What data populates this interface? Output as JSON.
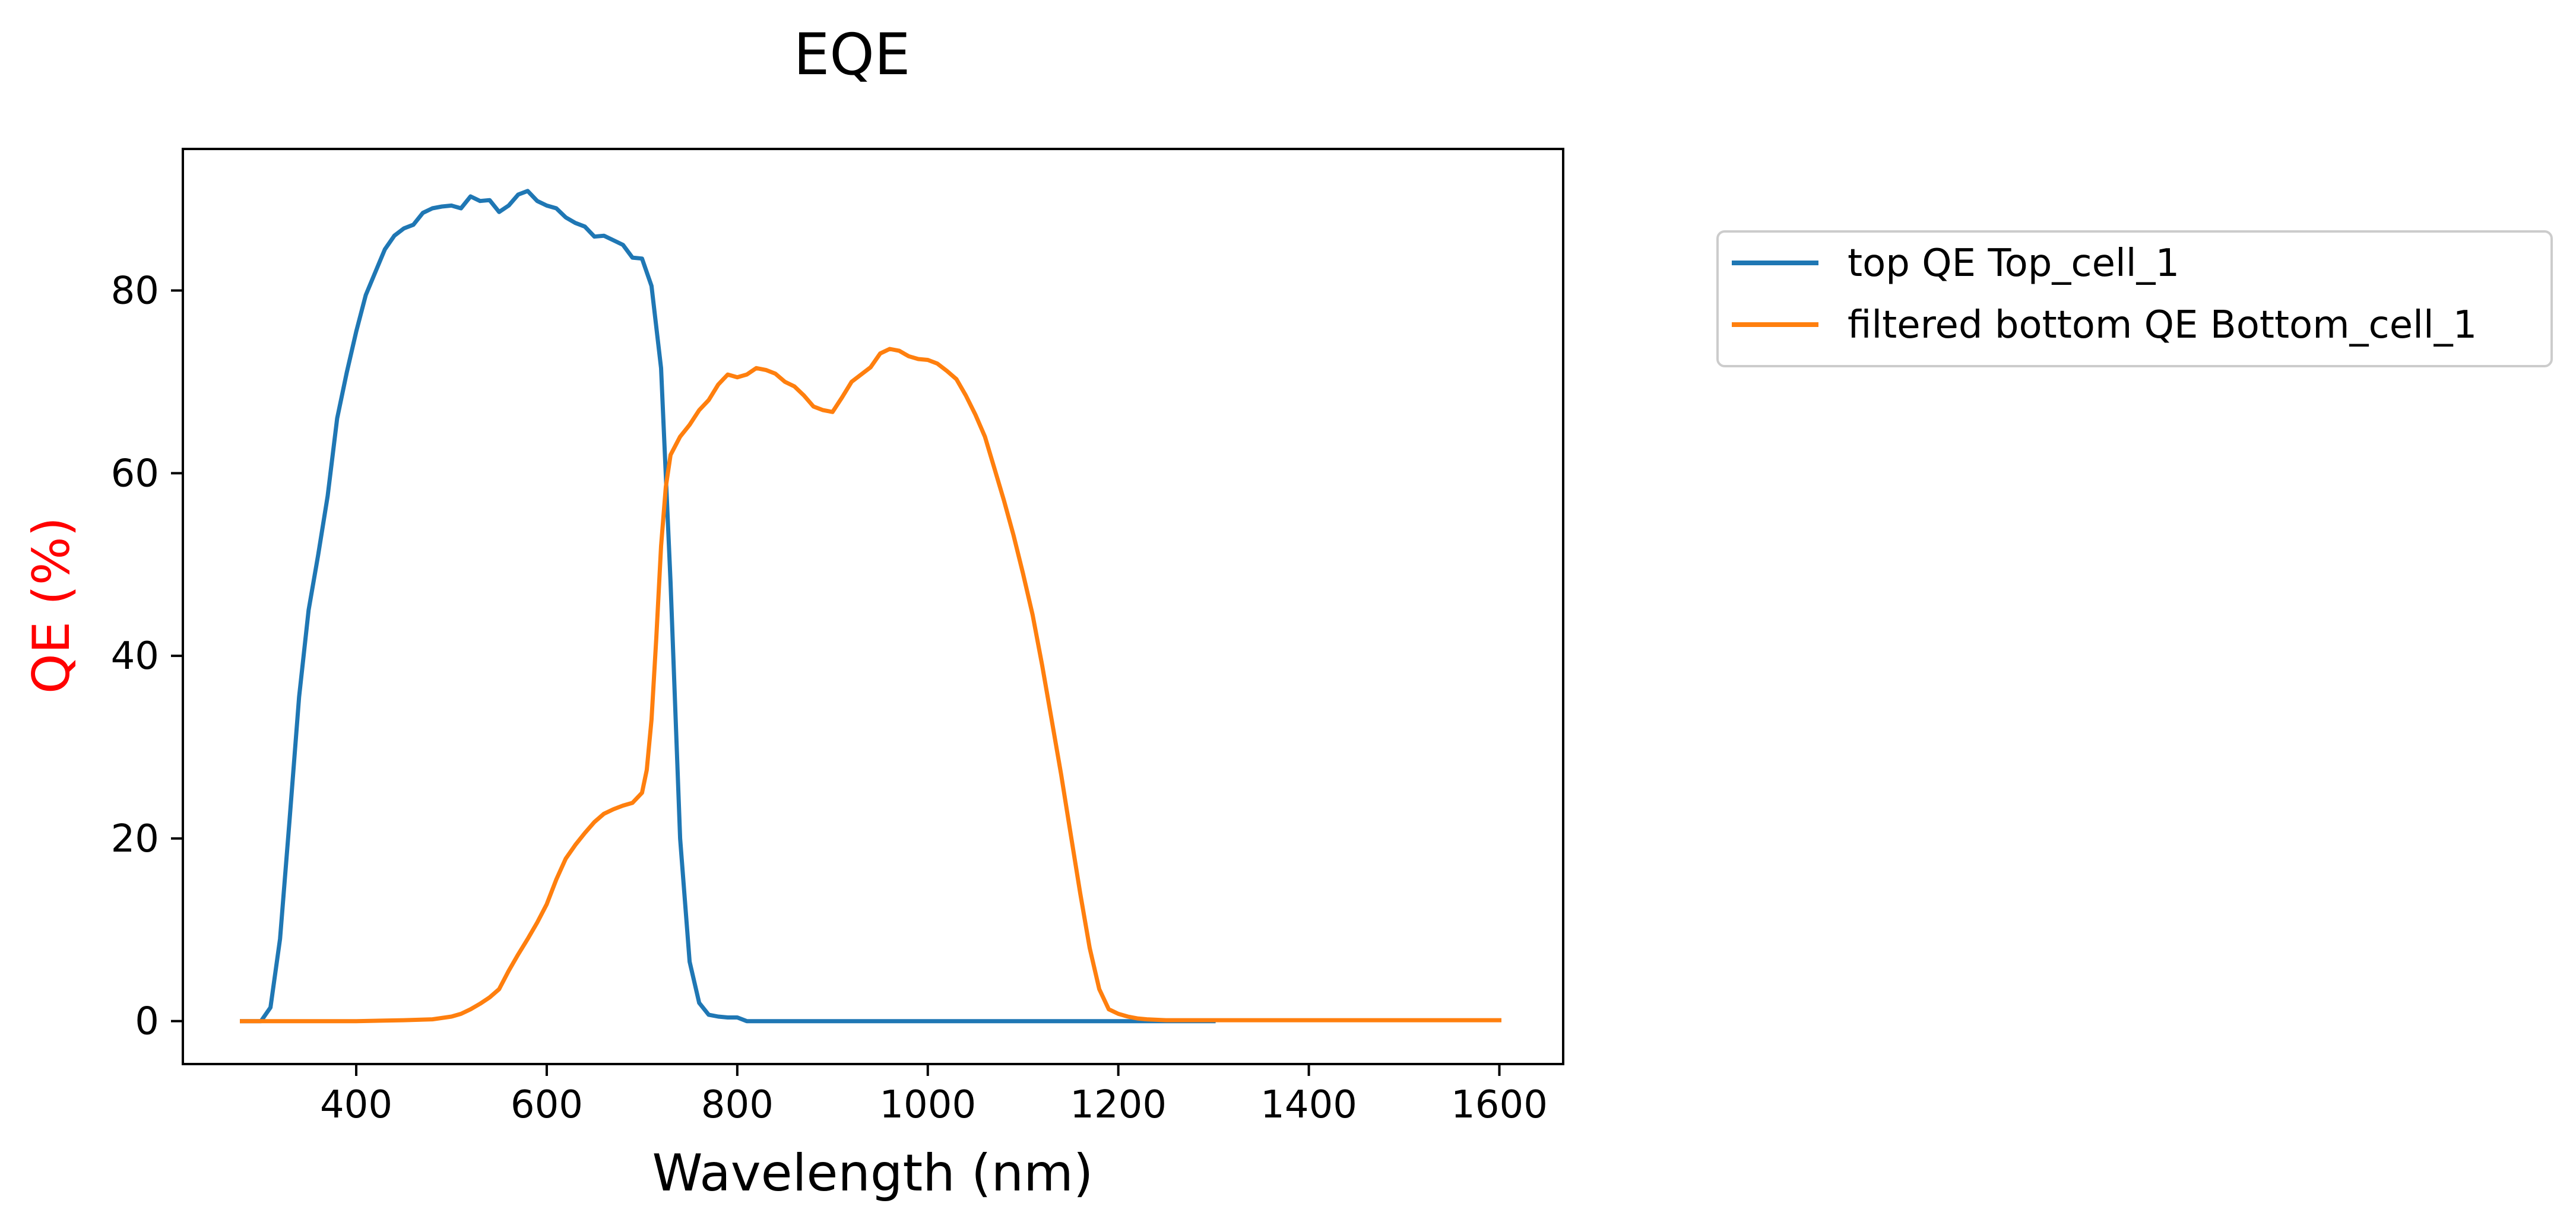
{
  "chart_data": {
    "type": "line",
    "title": "EQE",
    "xlabel": "Wavelength (nm)",
    "ylabel": "QE (%)",
    "ylabel_color": "#ff0000",
    "xlim": [
      218,
      1667
    ],
    "ylim": [
      -4.7,
      95.5
    ],
    "xticks": [
      400,
      600,
      800,
      1000,
      1200,
      1400,
      1600
    ],
    "yticks": [
      0,
      20,
      40,
      60,
      80
    ],
    "grid": false,
    "legend_position": "outside-right",
    "series": [
      {
        "name": "top QE Top_cell_1",
        "color": "#1f77b4",
        "points": [
          [
            280,
            0
          ],
          [
            300,
            0
          ],
          [
            310,
            1.5
          ],
          [
            320,
            9
          ],
          [
            330,
            22
          ],
          [
            340,
            35.5
          ],
          [
            350,
            45
          ],
          [
            360,
            51
          ],
          [
            370,
            57.5
          ],
          [
            380,
            66
          ],
          [
            390,
            71
          ],
          [
            400,
            75.5
          ],
          [
            410,
            79.5
          ],
          [
            420,
            82
          ],
          [
            430,
            84.5
          ],
          [
            440,
            86
          ],
          [
            450,
            86.8
          ],
          [
            460,
            87.2
          ],
          [
            470,
            88.5
          ],
          [
            480,
            89
          ],
          [
            490,
            89.2
          ],
          [
            500,
            89.3
          ],
          [
            510,
            89
          ],
          [
            520,
            90.3
          ],
          [
            530,
            89.8
          ],
          [
            540,
            89.9
          ],
          [
            550,
            88.6
          ],
          [
            560,
            89.3
          ],
          [
            570,
            90.5
          ],
          [
            580,
            90.9
          ],
          [
            590,
            89.8
          ],
          [
            600,
            89.3
          ],
          [
            610,
            89
          ],
          [
            620,
            88
          ],
          [
            630,
            87.4
          ],
          [
            640,
            87
          ],
          [
            650,
            85.9
          ],
          [
            660,
            86
          ],
          [
            670,
            85.5
          ],
          [
            680,
            85
          ],
          [
            690,
            83.6
          ],
          [
            700,
            83.5
          ],
          [
            710,
            80.5
          ],
          [
            720,
            71.5
          ],
          [
            730,
            48
          ],
          [
            740,
            20
          ],
          [
            750,
            6.5
          ],
          [
            760,
            2
          ],
          [
            770,
            0.7
          ],
          [
            780,
            0.5
          ],
          [
            790,
            0.4
          ],
          [
            800,
            0.4
          ],
          [
            810,
            0
          ],
          [
            850,
            0
          ],
          [
            900,
            0
          ],
          [
            1000,
            0
          ],
          [
            1100,
            0
          ],
          [
            1200,
            0
          ],
          [
            1300,
            0
          ]
        ]
      },
      {
        "name": "filtered bottom QE Bottom_cell_1",
        "color": "#ff7f0e",
        "points": [
          [
            280,
            0
          ],
          [
            300,
            0
          ],
          [
            350,
            0
          ],
          [
            400,
            0
          ],
          [
            450,
            0.1
          ],
          [
            480,
            0.2
          ],
          [
            500,
            0.5
          ],
          [
            510,
            0.8
          ],
          [
            520,
            1.3
          ],
          [
            530,
            1.9
          ],
          [
            540,
            2.6
          ],
          [
            550,
            3.5
          ],
          [
            560,
            5.5
          ],
          [
            570,
            7.3
          ],
          [
            580,
            9
          ],
          [
            590,
            10.8
          ],
          [
            600,
            12.8
          ],
          [
            610,
            15.5
          ],
          [
            620,
            17.8
          ],
          [
            630,
            19.3
          ],
          [
            640,
            20.6
          ],
          [
            650,
            21.8
          ],
          [
            660,
            22.7
          ],
          [
            670,
            23.2
          ],
          [
            680,
            23.6
          ],
          [
            690,
            23.9
          ],
          [
            700,
            25
          ],
          [
            705,
            27.5
          ],
          [
            710,
            33
          ],
          [
            715,
            42
          ],
          [
            720,
            52
          ],
          [
            725,
            58.5
          ],
          [
            730,
            62
          ],
          [
            740,
            64
          ],
          [
            750,
            65.3
          ],
          [
            760,
            66.9
          ],
          [
            770,
            68
          ],
          [
            780,
            69.7
          ],
          [
            790,
            70.8
          ],
          [
            800,
            70.5
          ],
          [
            810,
            70.8
          ],
          [
            820,
            71.5
          ],
          [
            830,
            71.3
          ],
          [
            840,
            70.9
          ],
          [
            850,
            70
          ],
          [
            860,
            69.5
          ],
          [
            870,
            68.5
          ],
          [
            880,
            67.3
          ],
          [
            890,
            66.9
          ],
          [
            900,
            66.7
          ],
          [
            910,
            68.3
          ],
          [
            920,
            70
          ],
          [
            930,
            70.8
          ],
          [
            940,
            71.6
          ],
          [
            950,
            73.1
          ],
          [
            960,
            73.6
          ],
          [
            970,
            73.4
          ],
          [
            980,
            72.8
          ],
          [
            990,
            72.5
          ],
          [
            1000,
            72.4
          ],
          [
            1010,
            72
          ],
          [
            1020,
            71.2
          ],
          [
            1030,
            70.3
          ],
          [
            1040,
            68.5
          ],
          [
            1050,
            66.4
          ],
          [
            1060,
            64
          ],
          [
            1070,
            60.5
          ],
          [
            1080,
            57
          ],
          [
            1090,
            53.2
          ],
          [
            1100,
            49
          ],
          [
            1110,
            44.5
          ],
          [
            1120,
            39
          ],
          [
            1130,
            33
          ],
          [
            1140,
            27
          ],
          [
            1150,
            20.5
          ],
          [
            1160,
            14
          ],
          [
            1170,
            8
          ],
          [
            1180,
            3.5
          ],
          [
            1190,
            1.3
          ],
          [
            1200,
            0.8
          ],
          [
            1210,
            0.5
          ],
          [
            1220,
            0.3
          ],
          [
            1230,
            0.2
          ],
          [
            1250,
            0.1
          ],
          [
            1300,
            0.1
          ],
          [
            1400,
            0.1
          ],
          [
            1500,
            0.1
          ],
          [
            1600,
            0.1
          ]
        ]
      }
    ]
  }
}
